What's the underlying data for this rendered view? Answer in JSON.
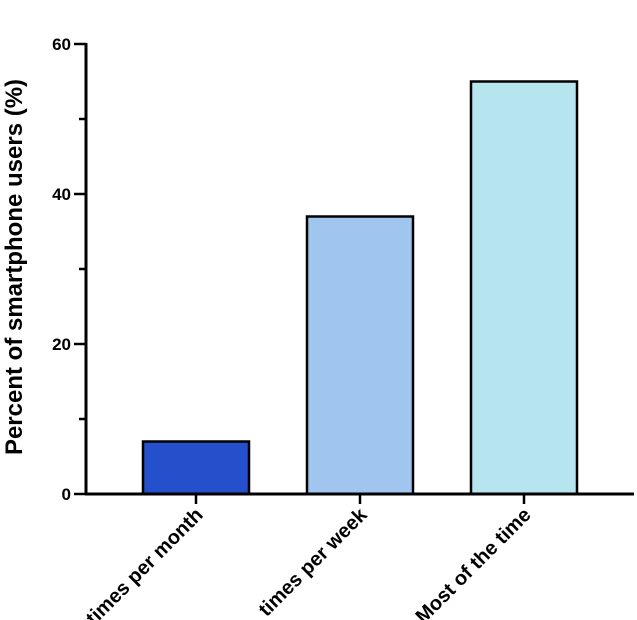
{
  "chart_data": {
    "type": "bar",
    "categories": [
      "times per month",
      "times per week",
      "Most of the time"
    ],
    "values": [
      7,
      37,
      55
    ],
    "bar_colors": [
      "#2450cc",
      "#a0c6ef",
      "#b6e5ef"
    ],
    "ylabel": "Percent of smartphone users (%)",
    "xlabel": "",
    "ylim": [
      0,
      60
    ],
    "yticks": [
      0,
      20,
      40,
      60
    ],
    "y_minor_ticks": [
      10,
      30,
      50
    ],
    "grid": false,
    "legend": "none"
  }
}
